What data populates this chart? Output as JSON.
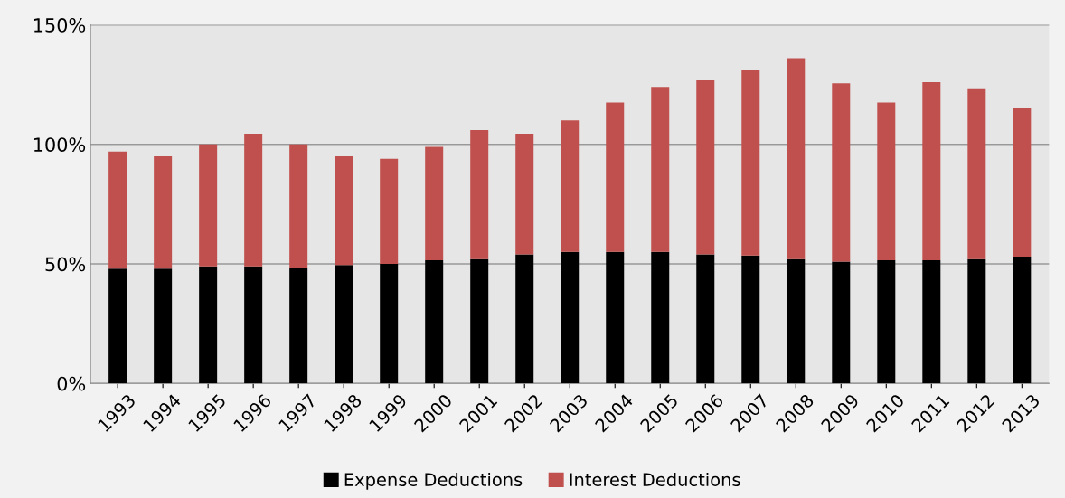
{
  "chart_data": {
    "type": "bar",
    "stacked": true,
    "categories": [
      "1993",
      "1994",
      "1995",
      "1996",
      "1997",
      "1998",
      "1999",
      "2000",
      "2001",
      "2002",
      "2003",
      "2004",
      "2005",
      "2006",
      "2007",
      "2008",
      "2009",
      "2010",
      "2011",
      "2012",
      "2013"
    ],
    "series": [
      {
        "name": "Expense Deductions",
        "color": "#000000",
        "values": [
          48,
          48,
          49,
          49,
          48.5,
          49.5,
          50,
          51.5,
          52,
          54,
          55,
          55,
          55,
          54,
          53.5,
          52,
          51,
          51.5,
          51.5,
          52,
          53
        ]
      },
      {
        "name": "Interest Deductions",
        "color": "#c0504d",
        "values": [
          49,
          47,
          51,
          55.5,
          51.5,
          45.5,
          44,
          47.5,
          54,
          50.5,
          55,
          62.5,
          69,
          73,
          77.5,
          84,
          74.5,
          66,
          74.5,
          71.5,
          62
        ]
      }
    ],
    "ylim": [
      0,
      150
    ],
    "yticks": [
      {
        "value": 0,
        "label": "0%"
      },
      {
        "value": 50,
        "label": "50%"
      },
      {
        "value": 100,
        "label": "100%"
      },
      {
        "value": 150,
        "label": "150%"
      }
    ],
    "grid": "y",
    "legend": "bottom"
  }
}
